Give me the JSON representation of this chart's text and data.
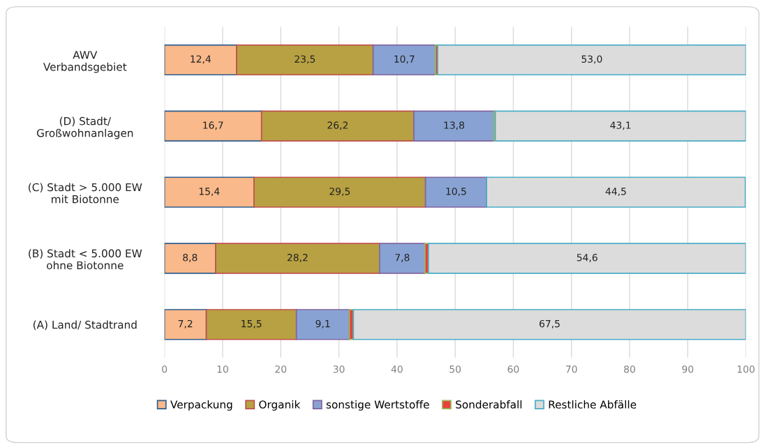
{
  "chart_data": {
    "type": "bar",
    "orientation": "horizontal",
    "stacked": true,
    "categories": [
      "AWV\nVerbandsgebiet",
      "(D) Stadt/\nGroßwohnanlagen",
      "(C) Stadt > 5.000 EW\nmit Biotonne",
      "(B) Stadt < 5.000 EW\nohne Biotonne",
      "(A) Land/ Stadtrand"
    ],
    "series": [
      {
        "name": "Verpackung",
        "color": "#f9b98a",
        "values": [
          12.4,
          16.7,
          15.4,
          8.8,
          7.2
        ],
        "value_labels": [
          "12,4",
          "16,7",
          "15,4",
          "8,8",
          "7,2"
        ]
      },
      {
        "name": "Organik",
        "color": "#b8a142",
        "values": [
          23.5,
          26.2,
          29.5,
          28.2,
          15.5
        ],
        "value_labels": [
          "23,5",
          "26,2",
          "29,5",
          "28,2",
          "15,5"
        ]
      },
      {
        "name": "sonstige Wertstoffe",
        "color": "#88a3d3",
        "values": [
          10.7,
          13.8,
          10.5,
          7.8,
          9.1
        ],
        "value_labels": [
          "10,7",
          "13,8",
          "10,5",
          "7,8",
          "9,1"
        ]
      },
      {
        "name": "Sonderabfall",
        "color": "#e8413c",
        "values": [
          0.4,
          0.2,
          null,
          0.6,
          0.7
        ]
      },
      {
        "name": "Restliche Abfälle",
        "color": "#dcdcdc",
        "values": [
          53.0,
          43.1,
          44.5,
          54.6,
          67.5
        ],
        "value_labels": [
          "53,0",
          "43,1",
          "44,5",
          "54,6",
          "67,5"
        ]
      }
    ],
    "xlim": [
      0,
      100
    ],
    "xticks": [
      0,
      10,
      20,
      30,
      40,
      50,
      60,
      70,
      80,
      90,
      100
    ],
    "grid": "x",
    "legend": "bottom"
  }
}
